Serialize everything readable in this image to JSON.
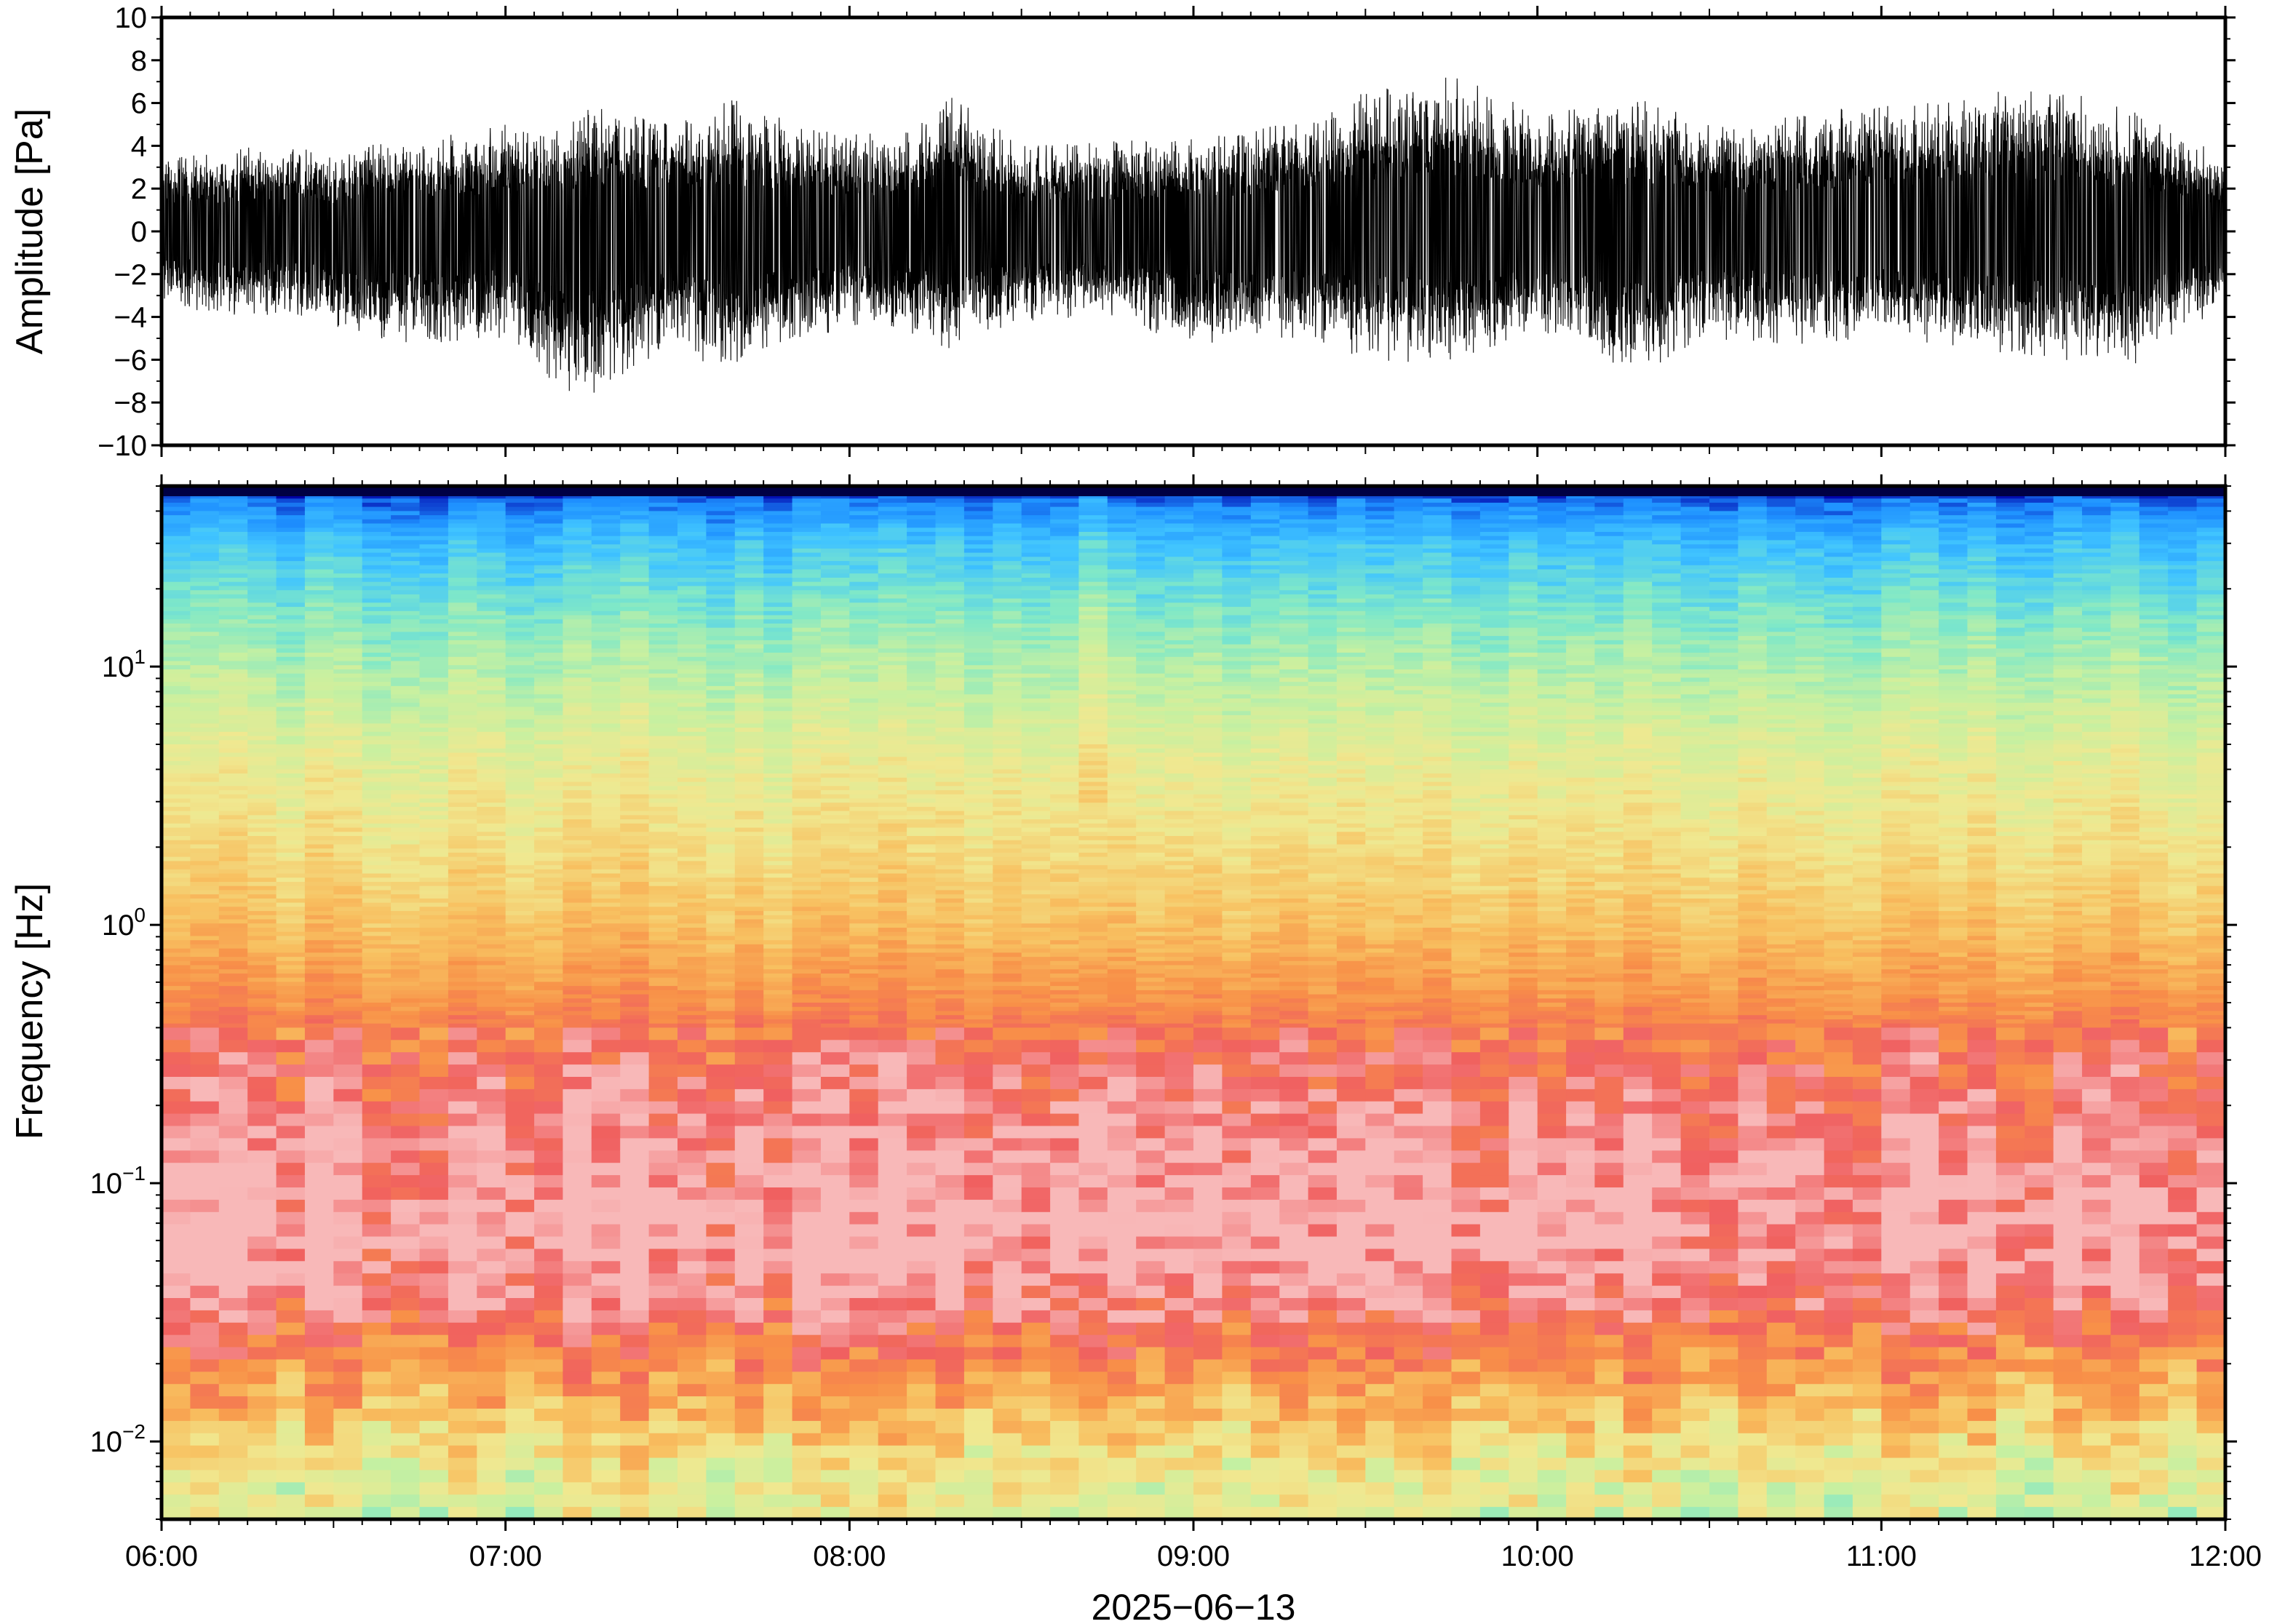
{
  "chart_data": [
    {
      "type": "line",
      "panel": "waveform",
      "ylabel": "Amplitude [Pa]",
      "ylim": [
        -10,
        10
      ],
      "yticks": [
        10,
        8,
        6,
        4,
        2,
        0,
        -2,
        -4,
        -6,
        -8,
        -10
      ],
      "ytick_labels": [
        "10",
        "8",
        "6",
        "4",
        "2",
        "0",
        "−2",
        "−4",
        "−6",
        "−8",
        "−10"
      ],
      "xlim": [
        "06:00",
        "12:00"
      ],
      "line_color": "#000000",
      "envelope_note_free": true,
      "series": [
        {
          "x": [
            "06:00",
            "06:15",
            "06:30",
            "06:45",
            "07:00",
            "07:10",
            "07:15",
            "07:30",
            "07:40",
            "07:45",
            "08:00",
            "08:15",
            "08:16",
            "08:30",
            "08:45",
            "09:00",
            "09:15",
            "09:30",
            "09:45",
            "10:00",
            "10:15",
            "10:18",
            "10:30",
            "10:45",
            "11:00",
            "11:15",
            "11:30",
            "11:45",
            "12:00"
          ],
          "y_max": [
            3.5,
            4.0,
            3.8,
            4.5,
            5.0,
            5.2,
            6.0,
            5.5,
            6.2,
            5.8,
            4.5,
            5.2,
            7.0,
            4.0,
            4.2,
            4.5,
            5.0,
            6.5,
            7.5,
            5.5,
            6.0,
            6.2,
            5.0,
            5.5,
            6.0,
            6.5,
            6.8,
            5.5,
            3.5
          ],
          "y_min": [
            -3.5,
            -4.0,
            -4.5,
            -5.5,
            -5.0,
            -7.5,
            -8.0,
            -5.0,
            -7.5,
            -5.5,
            -4.5,
            -5.0,
            -6.0,
            -4.2,
            -4.0,
            -5.5,
            -5.0,
            -6.0,
            -6.2,
            -5.0,
            -6.5,
            -6.8,
            -5.0,
            -5.5,
            -5.0,
            -5.5,
            -6.0,
            -6.2,
            -3.5
          ]
        }
      ]
    },
    {
      "type": "heatmap",
      "panel": "spectrogram",
      "ylabel": "Frequency [Hz]",
      "yscale": "log",
      "ylim": [
        0.005,
        50
      ],
      "yticks": [
        0.01,
        0.1,
        1,
        10
      ],
      "ytick_labels": [
        {
          "base": "10",
          "exp": "−2"
        },
        {
          "base": "10",
          "exp": "−1"
        },
        {
          "base": "10",
          "exp": "0"
        },
        {
          "base": "10",
          "exp": "1"
        }
      ],
      "xlim": [
        "06:00",
        "12:00"
      ],
      "colormap": [
        "#000033",
        "#0000aa",
        "#1e90ff",
        "#40c4ff",
        "#7fe8c8",
        "#c8f0a0",
        "#f0e890",
        "#f8c060",
        "#f89048",
        "#f06060",
        "#f8b8b8"
      ],
      "power_profile": {
        "freq": [
          50,
          45,
          30,
          15,
          8,
          4,
          2,
          1,
          0.5,
          0.3,
          0.15,
          0.07,
          0.04,
          0.025,
          0.015,
          0.008,
          0.005
        ],
        "level": [
          0.0,
          0.18,
          0.3,
          0.42,
          0.5,
          0.58,
          0.63,
          0.7,
          0.8,
          0.9,
          0.97,
          1.0,
          0.96,
          0.86,
          0.74,
          0.6,
          0.55
        ]
      }
    }
  ],
  "xaxis": {
    "tick_labels": [
      "06:00",
      "07:00",
      "08:00",
      "09:00",
      "10:00",
      "11:00",
      "12:00"
    ],
    "date_label": "2025−06−13"
  }
}
